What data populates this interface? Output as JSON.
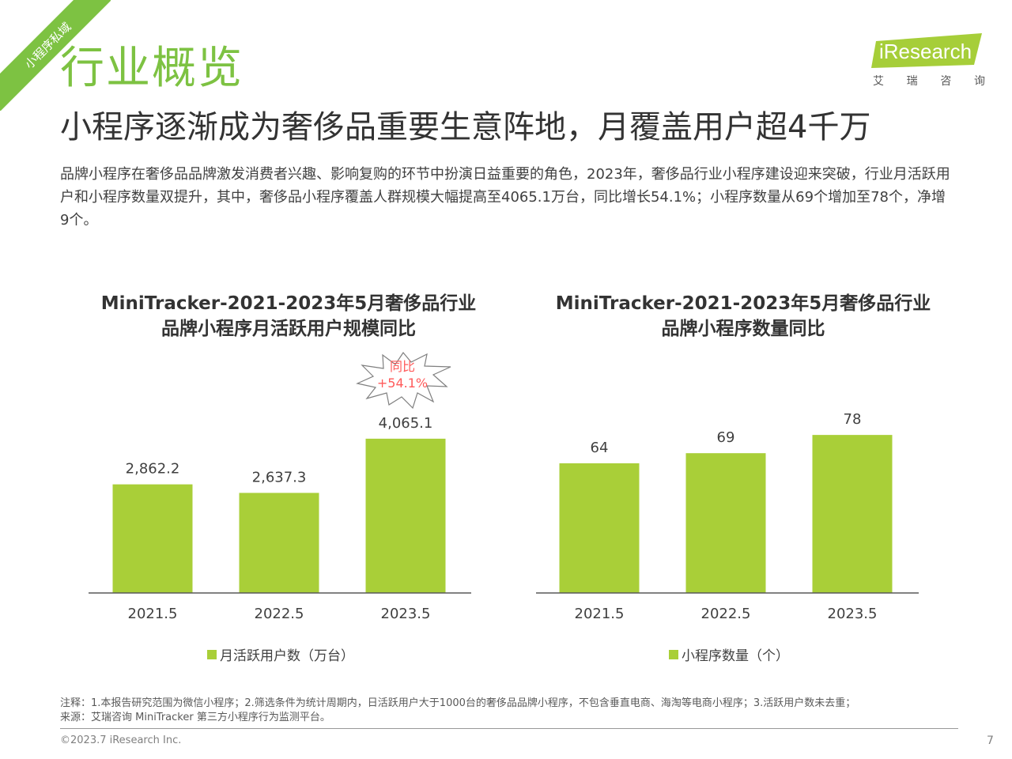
{
  "corner_tag": "小程序私域",
  "section_title": "行业概览",
  "logo": {
    "text": "iResearch",
    "cn": [
      "艾",
      "瑞",
      "咨",
      "询"
    ],
    "color": "#a6ce39"
  },
  "headline": "小程序逐渐成为奢侈品重要生意阵地，月覆盖用户超4千万",
  "intro": "品牌小程序在奢侈品品牌激发消费者兴趣、影响复购的环节中扮演日益重要的角色，2023年，奢侈品行业小程序建设迎来突破，行业月活跃用户和小程序数量双提升，其中，奢侈品小程序覆盖人群规模大幅提高至4065.1万台，同比增长54.1%；小程序数量从69个增加至78个，净增9个。",
  "chart_data": [
    {
      "type": "bar",
      "title_line1": "MiniTracker-2021-2023年5月奢侈品行业",
      "title_line2": "品牌小程序月活跃用户规模同比",
      "categories": [
        "2021.5",
        "2022.5",
        "2023.5"
      ],
      "series": [
        {
          "name": "月活跃用户数（万台）",
          "values": [
            2862.2,
            2637.3,
            4065.1
          ],
          "labels": [
            "2,862.2",
            "2,637.3",
            "4,065.1"
          ]
        }
      ],
      "ylim": [
        0,
        5000
      ],
      "annotation": {
        "line1": "同比",
        "line2": "+54.1%"
      },
      "color": "#a9cf38",
      "grid": false,
      "legend": "bottom"
    },
    {
      "type": "bar",
      "title_line1": "MiniTracker-2021-2023年5月奢侈品行业",
      "title_line2": "品牌小程序数量同比",
      "categories": [
        "2021.5",
        "2022.5",
        "2023.5"
      ],
      "series": [
        {
          "name": "小程序数量（个）",
          "values": [
            64,
            69,
            78
          ],
          "labels": [
            "64",
            "69",
            "78"
          ]
        }
      ],
      "ylim": [
        0,
        96
      ],
      "color": "#a9cf38",
      "grid": false,
      "legend": "bottom"
    }
  ],
  "footnote_line1": "注释：1.本报告研究范围为微信小程序；2.筛选条件为统计周期内，日活跃用户大于1000台的奢侈品品牌小程序，不包含垂直电商、海淘等电商小程序；3.活跃用户数未去重；",
  "footnote_line2": "来源：艾瑞咨询 MiniTracker 第三方小程序行为监测平台。",
  "copyright": "©2023.7 iResearch Inc.",
  "page_number": "7"
}
